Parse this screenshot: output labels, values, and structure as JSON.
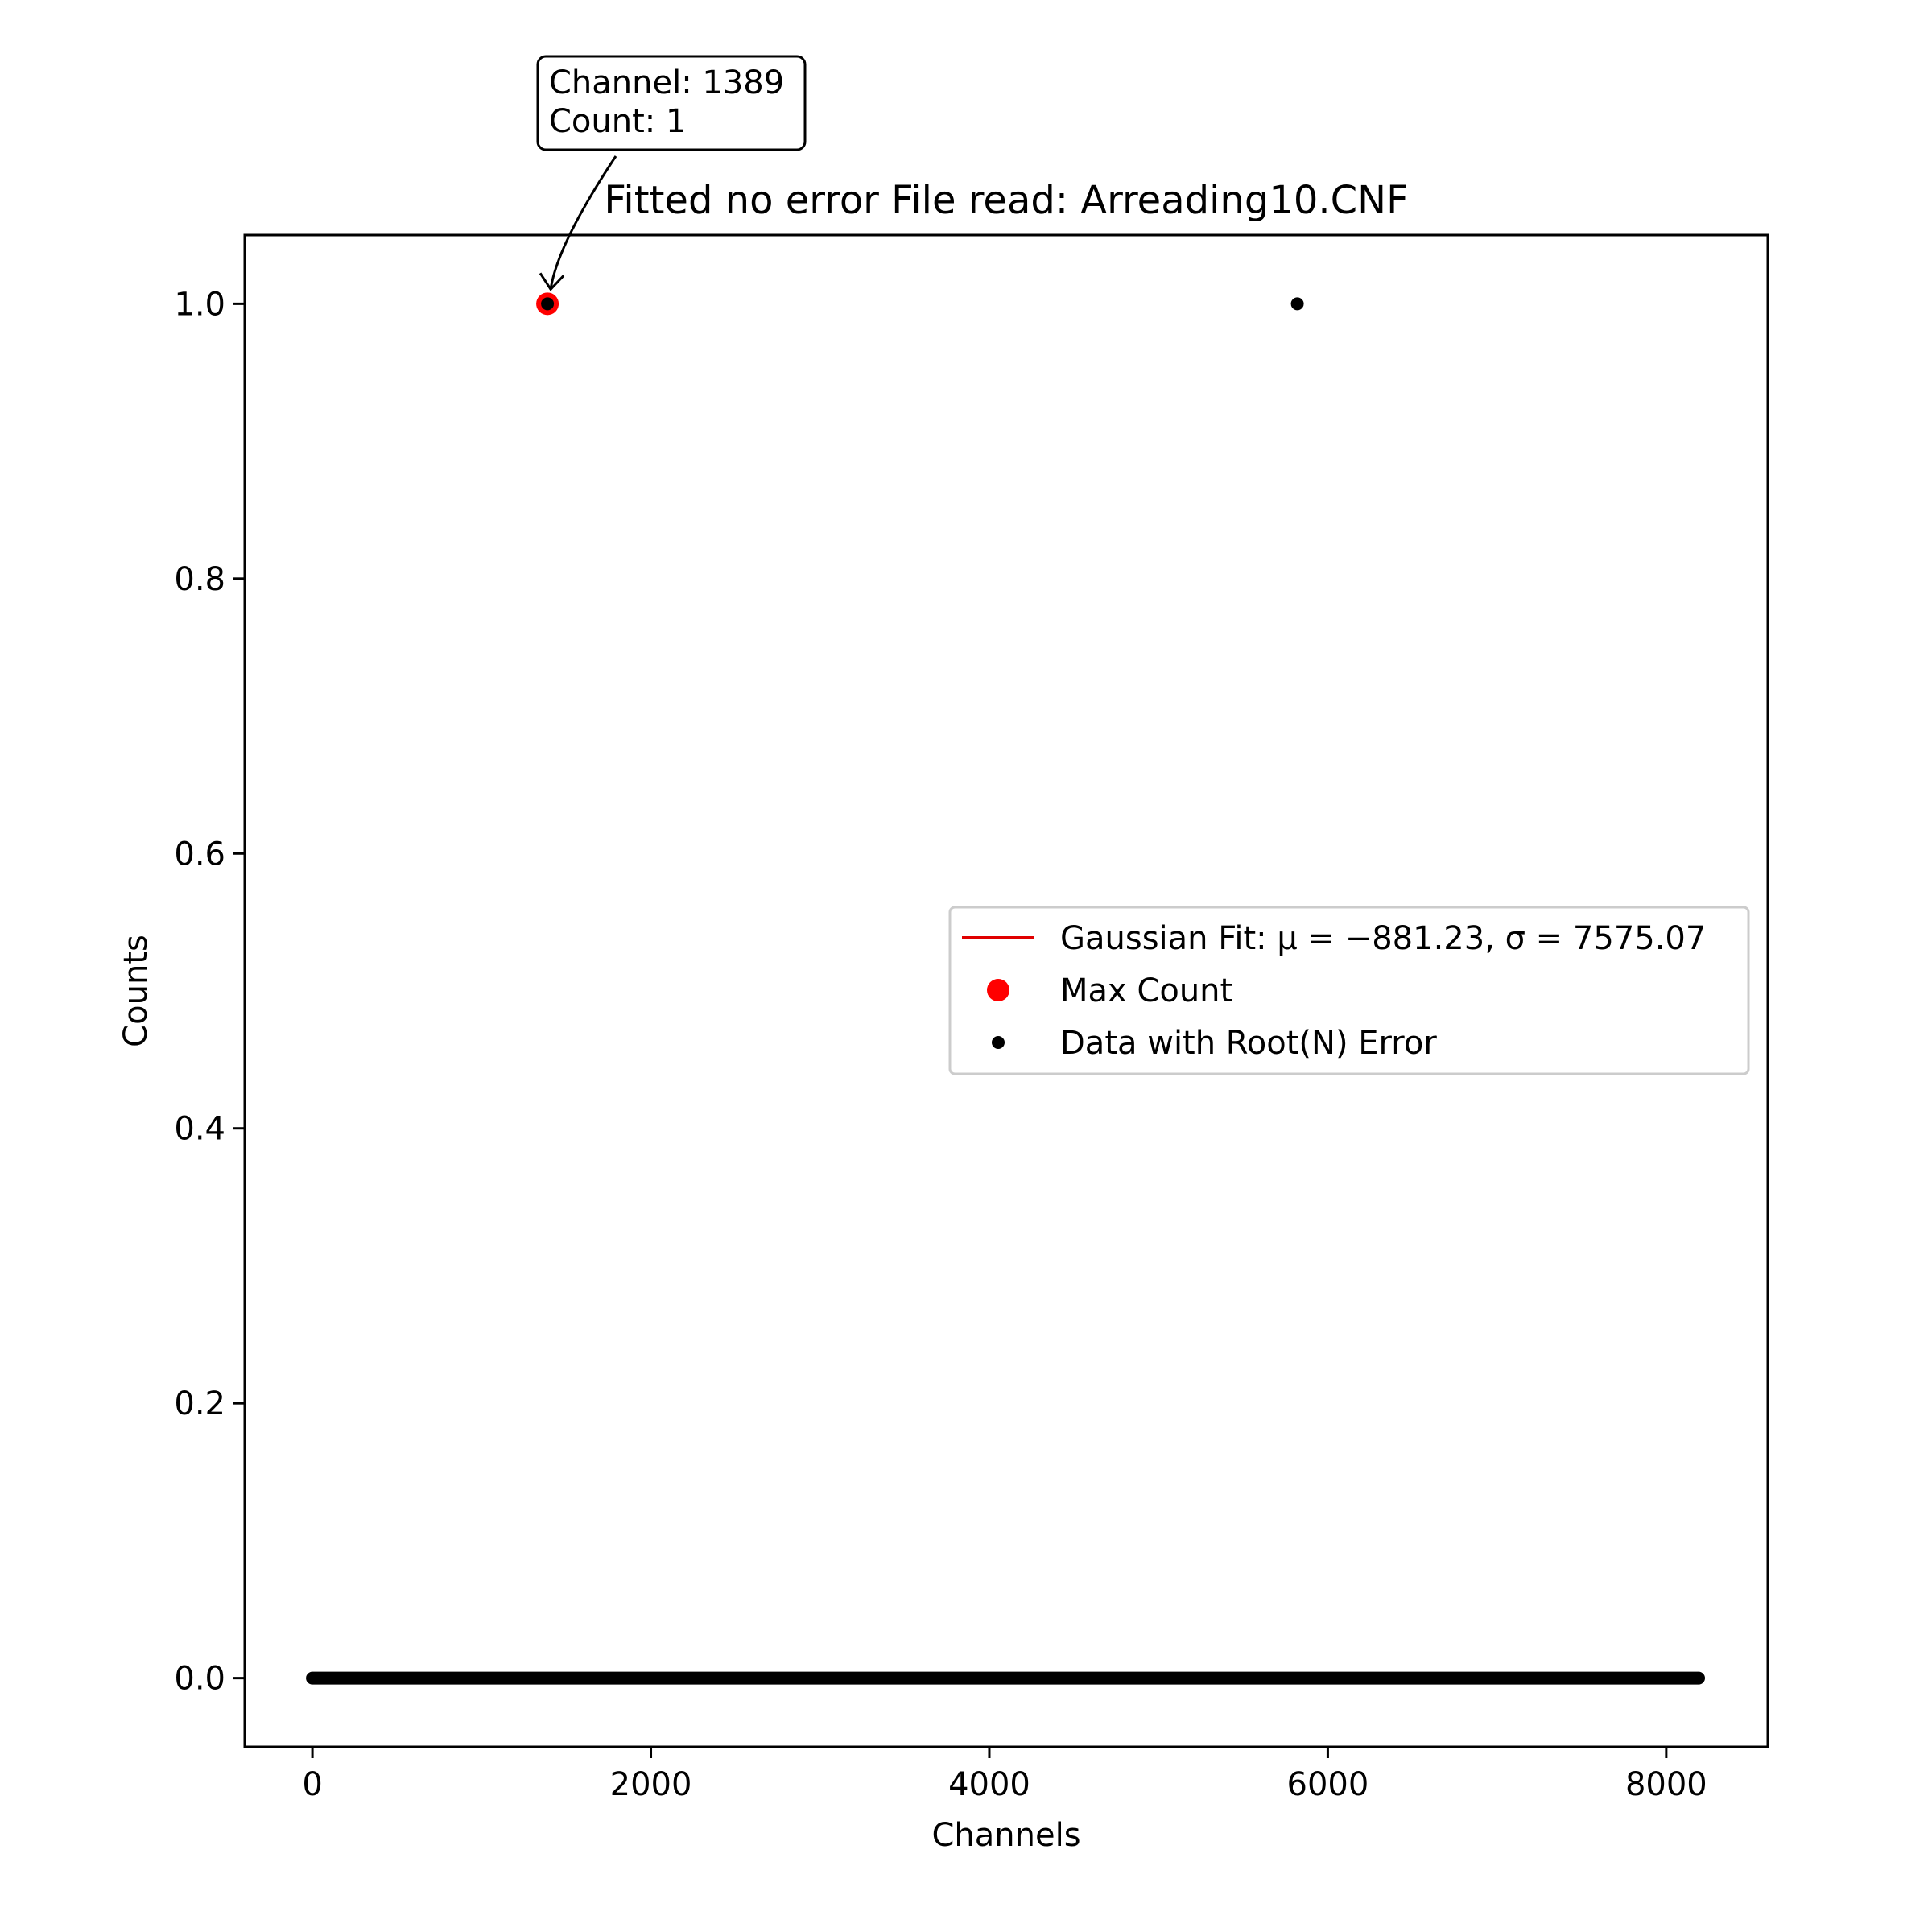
{
  "chart_data": {
    "type": "scatter",
    "title": "Fitted no error File read: Arreading10.CNF",
    "xlabel": "Channels",
    "ylabel": "Counts",
    "xlim": [
      -400,
      8600
    ],
    "ylim": [
      -0.05,
      1.05
    ],
    "x_ticks": [
      0,
      2000,
      4000,
      6000,
      8000
    ],
    "x_tick_labels": [
      "0",
      "2000",
      "4000",
      "6000",
      "8000"
    ],
    "y_ticks": [
      0.0,
      0.2,
      0.4,
      0.6,
      0.8,
      1.0
    ],
    "y_tick_labels": [
      "0.0",
      "0.2",
      "0.4",
      "0.6",
      "0.8",
      "1.0"
    ],
    "grid": false,
    "legend_position": "center-right",
    "series": [
      {
        "name": "Gaussian Fit: μ = −881.23, σ = 7575.07",
        "kind": "line",
        "color": "#e00000",
        "mu": -881.23,
        "sigma": 7575.07
      },
      {
        "name": "Max Count",
        "kind": "marker",
        "color": "#ff0000",
        "points": [
          {
            "x": 1389,
            "y": 1
          }
        ]
      },
      {
        "name": "Data with Root(N) Error",
        "kind": "scatter",
        "color": "#000000",
        "x_range": [
          0,
          8191
        ],
        "baseline_y": 0,
        "nonzero_points": [
          {
            "x": 1389,
            "y": 1
          },
          {
            "x": 5820,
            "y": 1
          }
        ]
      }
    ],
    "annotation": {
      "lines": [
        "Channel: 1389",
        "Count: 1"
      ],
      "target": {
        "x": 1389,
        "y": 1
      }
    }
  }
}
